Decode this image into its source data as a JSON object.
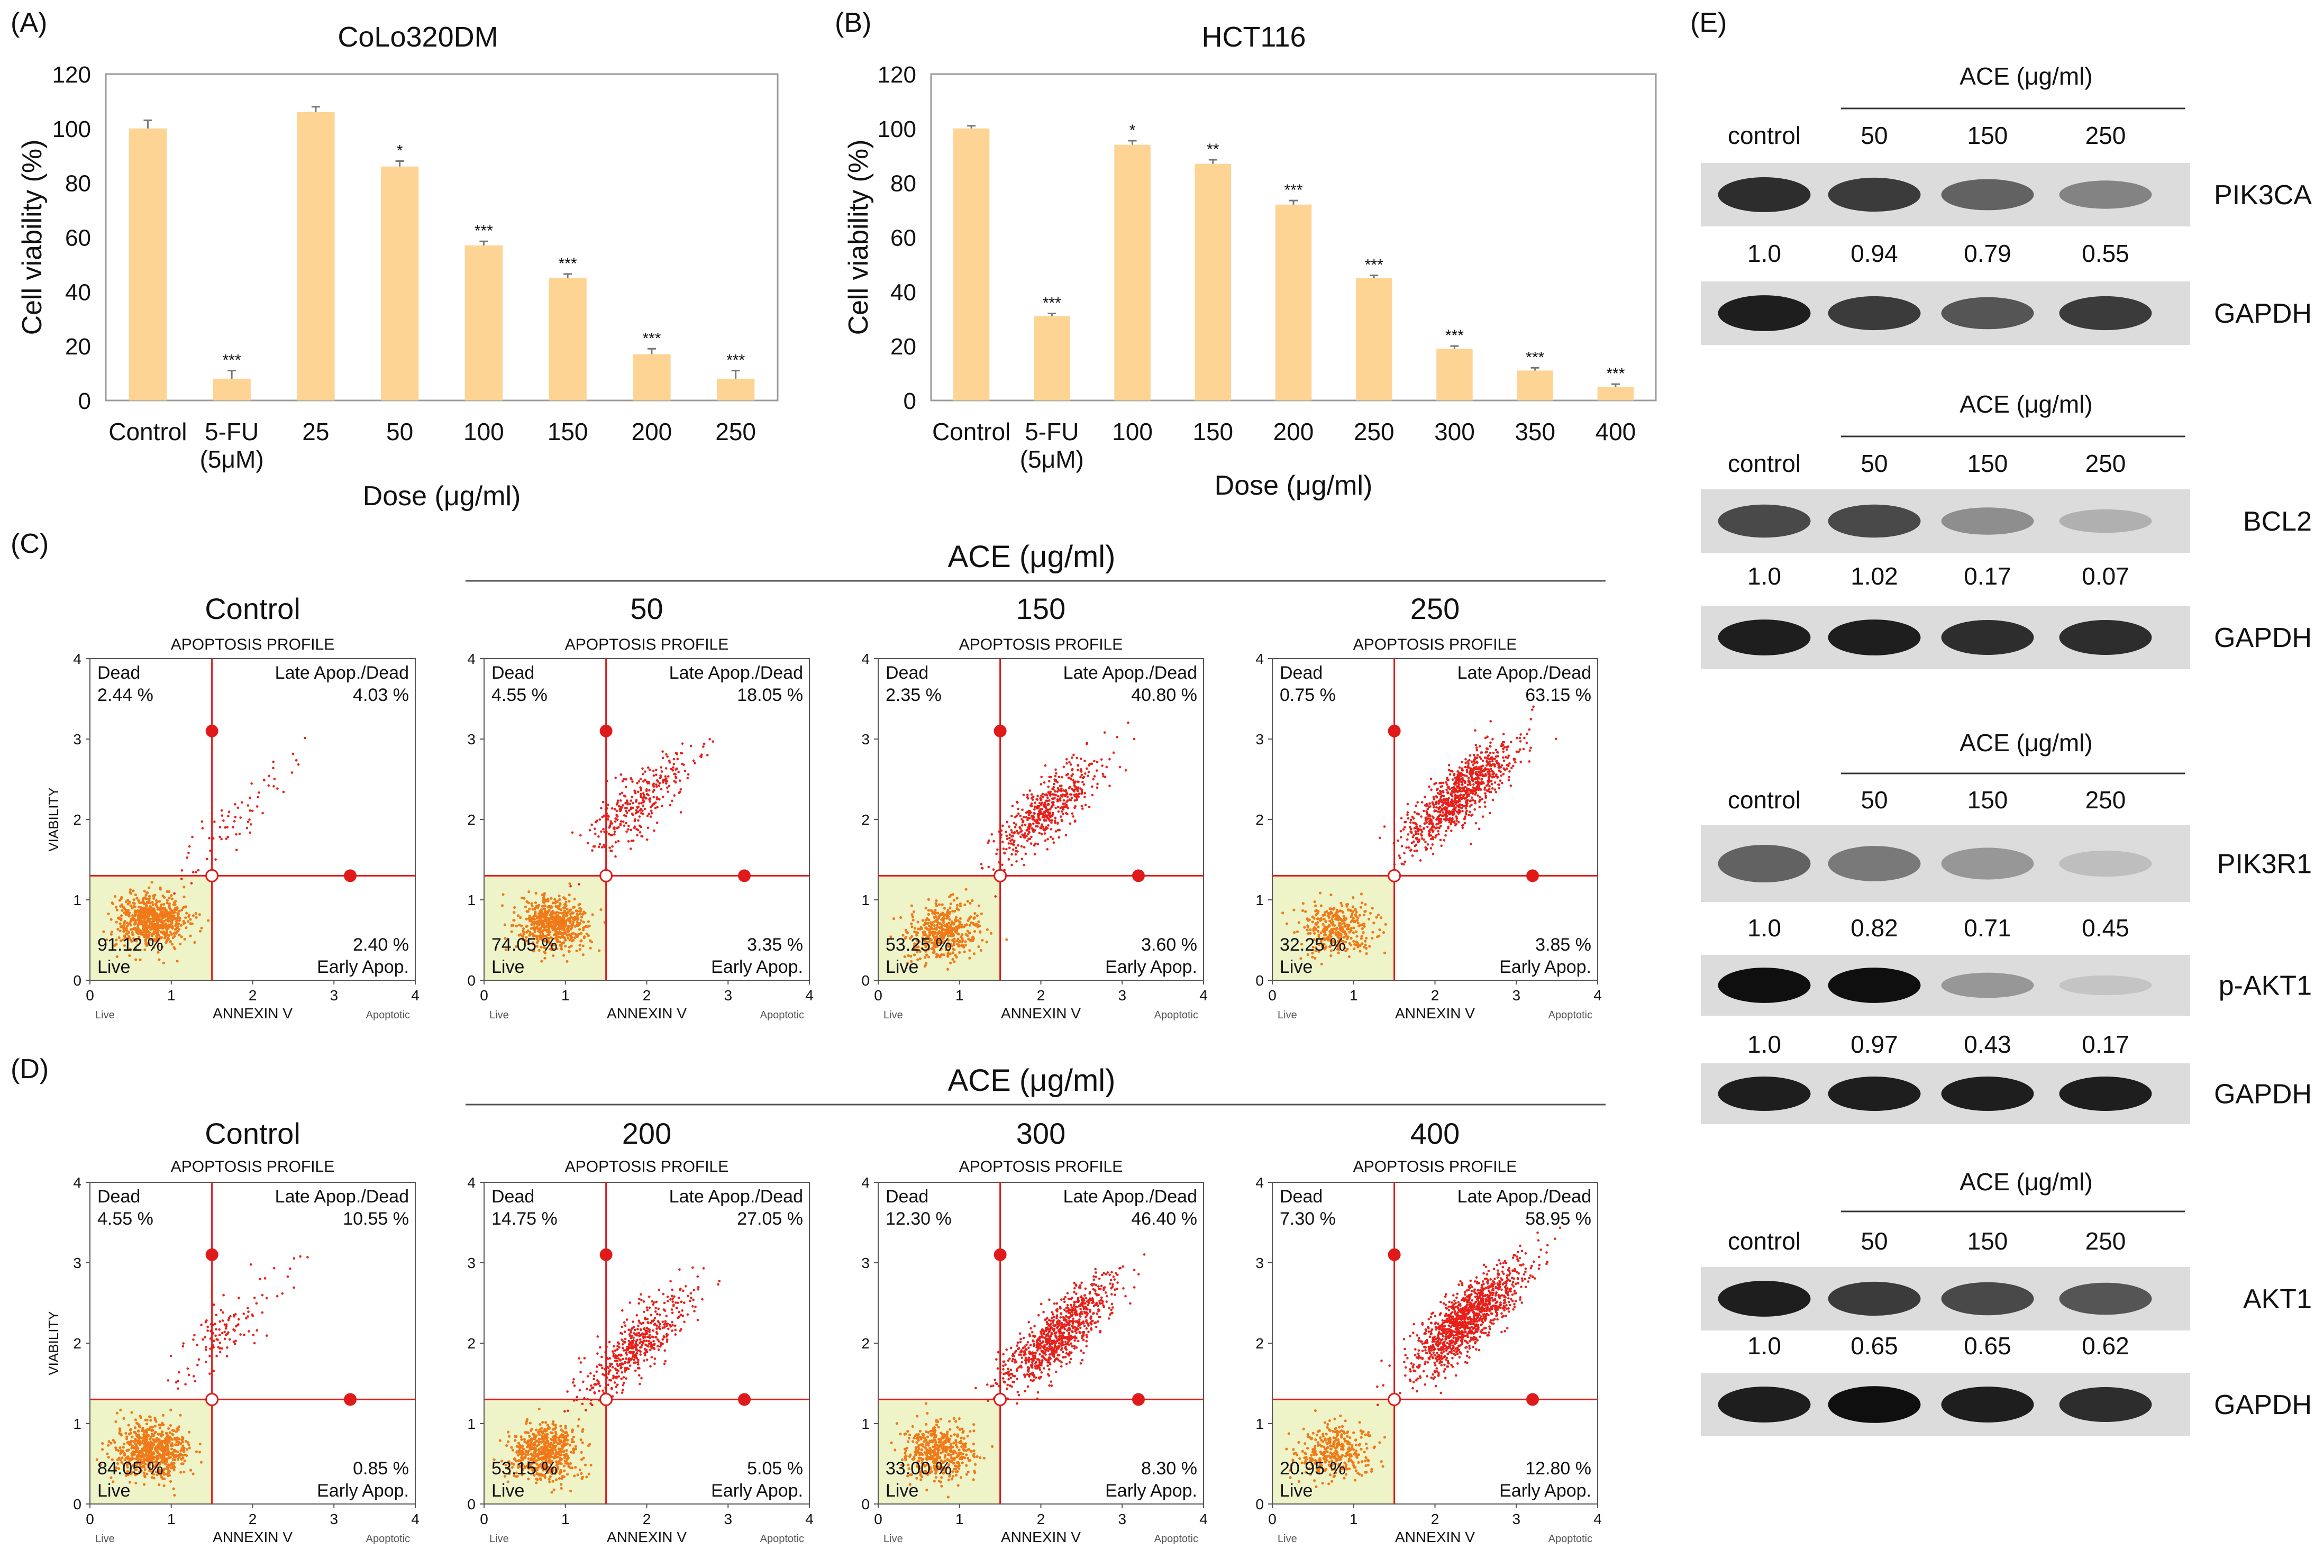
{
  "chart_data": [
    {
      "panel": "(A)",
      "type": "bar",
      "title": "CoLo320DM",
      "categories": [
        "Control",
        "5-FU\n(5μM)",
        "25",
        "50",
        "100",
        "150",
        "200",
        "250"
      ],
      "values": [
        100,
        8,
        106,
        86,
        57,
        45,
        17,
        8
      ],
      "errors": [
        3,
        3,
        2,
        2,
        1.5,
        1.5,
        2,
        3
      ],
      "significance": [
        "",
        "***",
        "",
        "*",
        "***",
        "***",
        "***",
        "***"
      ],
      "xlabel": "Dose (μg/ml)",
      "ylabel": "Cell viability (%)",
      "ylim": [
        0,
        120
      ],
      "yticks": [
        0,
        20,
        40,
        60,
        80,
        100,
        120
      ],
      "bar_color": "#fdd493"
    },
    {
      "panel": "(B)",
      "type": "bar",
      "title": "HCT116",
      "categories": [
        "Control",
        "5-FU\n(5μM)",
        "100",
        "150",
        "200",
        "250",
        "300",
        "350",
        "400"
      ],
      "values": [
        100,
        31,
        94,
        87,
        72,
        45,
        19,
        11,
        5
      ],
      "errors": [
        1,
        1,
        1.5,
        1.5,
        1.5,
        1,
        1,
        1,
        1
      ],
      "significance": [
        "",
        "***",
        "*",
        "**",
        "***",
        "***",
        "***",
        "***",
        "***"
      ],
      "xlabel": "Dose (μg/ml)",
      "ylabel": "Cell viability (%)",
      "ylim": [
        0,
        120
      ],
      "yticks": [
        0,
        20,
        40,
        60,
        80,
        100,
        120
      ],
      "bar_color": "#fdd493"
    },
    {
      "panel": "(C)",
      "type": "scatter",
      "group_label": "ACE (μg/ml)",
      "profile_title": "APOPTOSIS PROFILE",
      "xlabel": "ANNEXIN V",
      "ylabel": "VIABILITY",
      "x_left_label": "Live",
      "x_right_label": "Apoptotic",
      "xlim": [
        0,
        4
      ],
      "ylim": [
        0,
        4
      ],
      "ticks": [
        0,
        1,
        2,
        3,
        4
      ],
      "gate_x": 1.5,
      "gate_y": 1.3,
      "quadrant_labels": {
        "dead": "Dead",
        "late": "Late Apop./Dead",
        "live": "Live",
        "early": "Early Apop."
      },
      "plots": [
        {
          "heading": "Control",
          "dead": "2.44 %",
          "late": "4.03 %",
          "live": "91.12 %",
          "early": "2.40 %"
        },
        {
          "heading": "50",
          "dead": "4.55 %",
          "late": "18.05 %",
          "live": "74.05 %",
          "early": "3.35 %"
        },
        {
          "heading": "150",
          "dead": "2.35 %",
          "late": "40.80 %",
          "live": "53.25 %",
          "early": "3.60 %"
        },
        {
          "heading": "250",
          "dead": "0.75 %",
          "late": "63.15 %",
          "live": "32.25 %",
          "early": "3.85 %"
        }
      ]
    },
    {
      "panel": "(D)",
      "type": "scatter",
      "group_label": "ACE (μg/ml)",
      "profile_title": "APOPTOSIS PROFILE",
      "xlabel": "ANNEXIN V",
      "ylabel": "VIABILITY",
      "x_left_label": "Live",
      "x_right_label": "Apoptotic",
      "xlim": [
        0,
        4
      ],
      "ylim": [
        0,
        4
      ],
      "ticks": [
        0,
        1,
        2,
        3,
        4
      ],
      "gate_x": 1.5,
      "gate_y": 1.3,
      "quadrant_labels": {
        "dead": "Dead",
        "late": "Late Apop./Dead",
        "live": "Live",
        "early": "Early Apop."
      },
      "plots": [
        {
          "heading": "Control",
          "dead": "4.55 %",
          "late": "10.55 %",
          "live": "84.05 %",
          "early": "0.85 %"
        },
        {
          "heading": "200",
          "dead": "14.75 %",
          "late": "27.05 %",
          "live": "53.15 %",
          "early": "5.05 %"
        },
        {
          "heading": "300",
          "dead": "12.30 %",
          "late": "46.40 %",
          "live": "33.00 %",
          "early": "8.30 %"
        },
        {
          "heading": "400",
          "dead": "7.30 %",
          "late": "58.95 %",
          "live": "20.95 %",
          "early": "12.80 %"
        }
      ]
    },
    {
      "panel": "(E)",
      "type": "western_blot",
      "groups": [
        {
          "header": "ACE (μg/ml)",
          "lanes": [
            "control",
            "50",
            "150",
            "250"
          ],
          "blots": [
            {
              "label": "PIK3CA",
              "intensities": [
                0.9,
                0.85,
                0.7,
                0.55
              ],
              "quant": [
                "1.0",
                "0.94",
                "0.79",
                "0.55"
              ]
            },
            {
              "label": "GAPDH",
              "intensities": [
                0.95,
                0.85,
                0.75,
                0.85
              ],
              "quant": null
            }
          ]
        },
        {
          "header": "ACE (μg/ml)",
          "lanes": [
            "control",
            "50",
            "150",
            "250"
          ],
          "blots": [
            {
              "label": "BCL2",
              "intensities": [
                0.8,
                0.8,
                0.5,
                0.3
              ],
              "quant": [
                "1.0",
                "1.02",
                "0.17",
                "0.07"
              ]
            },
            {
              "label": "GAPDH",
              "intensities": [
                0.95,
                0.95,
                0.9,
                0.9
              ],
              "quant": null
            }
          ]
        },
        {
          "header": "ACE (μg/ml)",
          "lanes": [
            "control",
            "50",
            "150",
            "250"
          ],
          "blots": [
            {
              "label": "PIK3R1",
              "intensities": [
                0.7,
                0.6,
                0.45,
                0.2
              ],
              "quant": [
                "1.0",
                "0.82",
                "0.71",
                "0.45"
              ]
            },
            {
              "label": "p-AKT1",
              "intensities": [
                1.0,
                1.0,
                0.45,
                0.15
              ],
              "quant": [
                "1.0",
                "0.97",
                "0.43",
                "0.17"
              ]
            },
            {
              "label": "GAPDH",
              "intensities": [
                0.95,
                0.95,
                0.95,
                0.95
              ],
              "quant": null
            }
          ]
        },
        {
          "header": "ACE (μg/ml)",
          "lanes": [
            "control",
            "50",
            "150",
            "250"
          ],
          "blots": [
            {
              "label": "AKT1",
              "intensities": [
                0.95,
                0.85,
                0.8,
                0.75
              ],
              "quant": [
                "1.0",
                "0.65",
                "0.65",
                "0.62"
              ]
            },
            {
              "label": "GAPDH",
              "intensities": [
                0.95,
                1.0,
                0.95,
                0.9
              ],
              "quant": null
            }
          ]
        }
      ]
    }
  ]
}
